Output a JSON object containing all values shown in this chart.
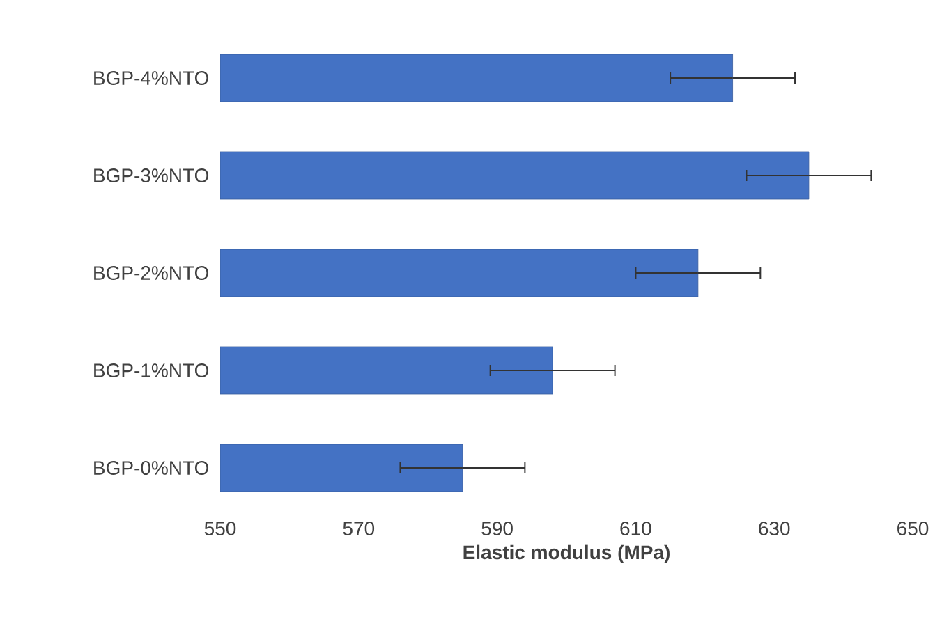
{
  "chart_data": {
    "type": "bar",
    "orientation": "horizontal",
    "xlabel": "Elastic modulus (MPa)",
    "categories": [
      "BGP-4%NTO",
      "BGP-3%NTO",
      "BGP-2%NTO",
      "BGP-1%NTO",
      "BGP-0%NTO"
    ],
    "values": [
      624,
      635,
      619,
      598,
      585
    ],
    "errors": [
      9,
      9,
      9,
      9,
      9
    ],
    "color": "#4472c4",
    "xlim": [
      550,
      650
    ],
    "xticks": [
      550,
      570,
      590,
      610,
      630,
      650
    ]
  }
}
